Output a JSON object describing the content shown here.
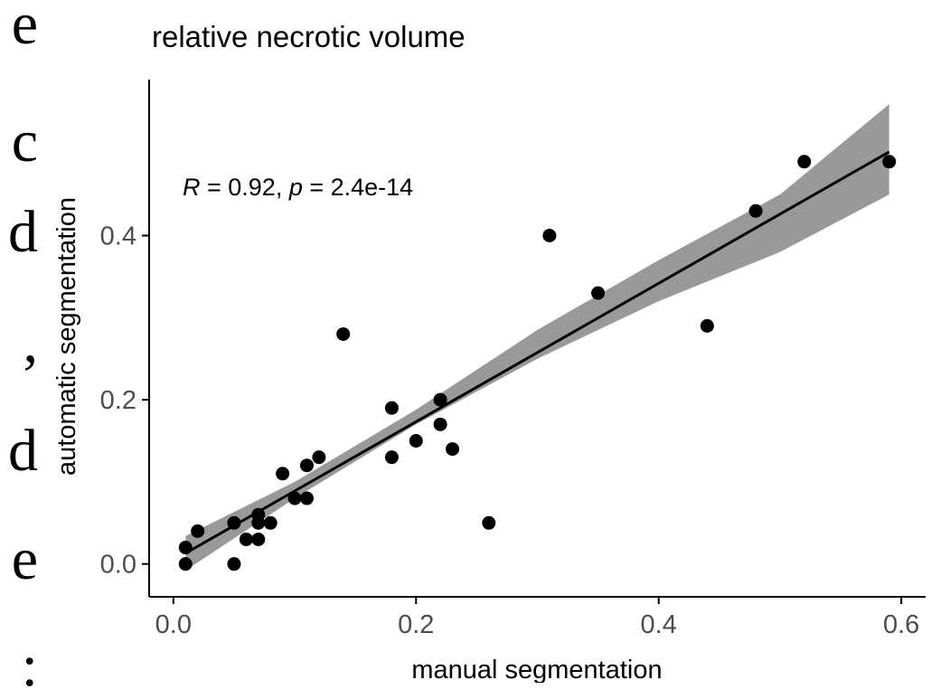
{
  "side_text": [
    "e",
    "c",
    "d",
    ",",
    "d",
    "e",
    ":"
  ],
  "chart_data": {
    "type": "scatter",
    "title": "relative necrotic volume",
    "xlabel": "manual segmentation",
    "ylabel": "automatic segmentation",
    "xlim": [
      -0.02,
      0.62
    ],
    "ylim": [
      -0.04,
      0.59
    ],
    "x_ticks": [
      0.0,
      0.2,
      0.4,
      0.6
    ],
    "x_tick_labels": [
      "0.0",
      "0.2",
      "0.4",
      "0.6"
    ],
    "y_ticks": [
      0.0,
      0.2,
      0.4
    ],
    "y_tick_labels": [
      "0.0",
      "0.2",
      "0.4"
    ],
    "grid": false,
    "annotation": {
      "r_label": "R",
      "r_value": " = 0.92, ",
      "p_label": "p",
      "p_value": " = 2.4e-14"
    },
    "points": [
      {
        "x": 0.01,
        "y": 0.0
      },
      {
        "x": 0.01,
        "y": 0.02
      },
      {
        "x": 0.02,
        "y": 0.04
      },
      {
        "x": 0.05,
        "y": 0.0
      },
      {
        "x": 0.05,
        "y": 0.05
      },
      {
        "x": 0.06,
        "y": 0.03
      },
      {
        "x": 0.07,
        "y": 0.03
      },
      {
        "x": 0.07,
        "y": 0.05
      },
      {
        "x": 0.07,
        "y": 0.06
      },
      {
        "x": 0.08,
        "y": 0.05
      },
      {
        "x": 0.09,
        "y": 0.11
      },
      {
        "x": 0.1,
        "y": 0.08
      },
      {
        "x": 0.11,
        "y": 0.08
      },
      {
        "x": 0.11,
        "y": 0.12
      },
      {
        "x": 0.12,
        "y": 0.13
      },
      {
        "x": 0.14,
        "y": 0.28
      },
      {
        "x": 0.18,
        "y": 0.13
      },
      {
        "x": 0.18,
        "y": 0.19
      },
      {
        "x": 0.2,
        "y": 0.15
      },
      {
        "x": 0.22,
        "y": 0.17
      },
      {
        "x": 0.22,
        "y": 0.2
      },
      {
        "x": 0.23,
        "y": 0.14
      },
      {
        "x": 0.26,
        "y": 0.05
      },
      {
        "x": 0.31,
        "y": 0.4
      },
      {
        "x": 0.35,
        "y": 0.33
      },
      {
        "x": 0.44,
        "y": 0.29
      },
      {
        "x": 0.48,
        "y": 0.43
      },
      {
        "x": 0.52,
        "y": 0.49
      },
      {
        "x": 0.59,
        "y": 0.49
      }
    ],
    "fit_line": {
      "x": [
        0.01,
        0.59
      ],
      "y": [
        0.013,
        0.502
      ]
    },
    "confidence_band": {
      "x": [
        0.01,
        0.1,
        0.2,
        0.3,
        0.4,
        0.5,
        0.59
      ],
      "lower": [
        -0.008,
        0.08,
        0.17,
        0.25,
        0.32,
        0.38,
        0.45
      ],
      "upper": [
        0.034,
        0.1,
        0.188,
        0.285,
        0.37,
        0.45,
        0.56
      ]
    },
    "colors": {
      "points": "#000000",
      "fit_line": "#000000",
      "band": "#999999",
      "axis": "#000000",
      "tick_label": "#4d4d4d"
    }
  }
}
